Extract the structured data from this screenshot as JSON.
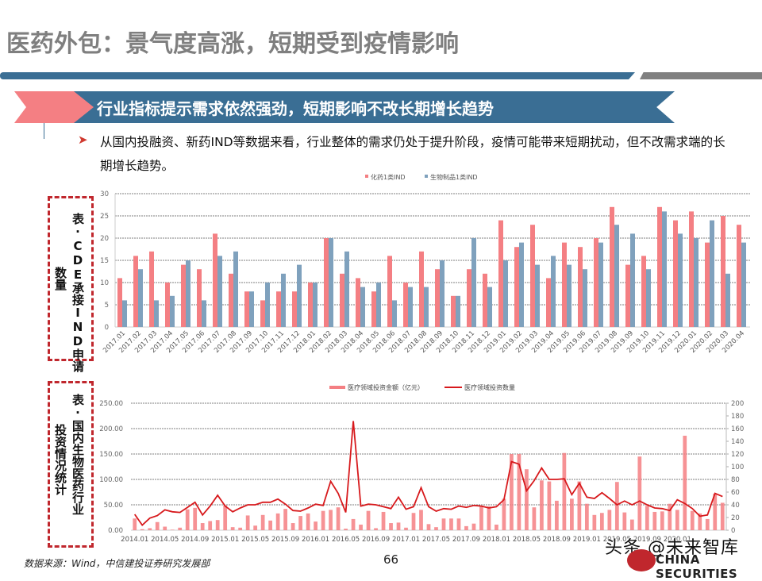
{
  "page": {
    "title": "医药外包：景气度高涨，短期受到疫情影响",
    "section_banner": "行业指标提示需求依然强劲，短期影响不改长期增长趋势",
    "bullet_text": "从国内投融资、新药IND等数据来看，行业整体的需求仍处于提升阶段，疫情可能带来短期扰动，但不改需求端的长期增长趋势。",
    "chart1_caption": "表：CDE承接IND申请数量",
    "chart1_caption_col1": "表·CDE承接IND申请",
    "chart1_caption_col2": "数量",
    "chart2_caption": "表：国内生物医药行业投资情况统计",
    "chart2_caption_col1": "表·国内生物医药行业",
    "chart2_caption_col2": "投资情况统计",
    "footer_source": "数据来源：Wind，中信建投证券研究发展部",
    "page_number": "66",
    "logo_text": "CHINA SECURITIES",
    "watermark": "头条 @未来智库"
  },
  "colors": {
    "title_grey": "#7f7f7f",
    "blue": "#3a6e94",
    "pink": "#f47f83",
    "series_red": "#f47f83",
    "series_blue": "#7fa1bd",
    "line_red": "#d7191c",
    "dash_red": "#c0272d"
  },
  "chart_data": [
    {
      "type": "bar",
      "title": "CDE承接IND申请数量",
      "legend_position": "top",
      "grid": true,
      "ylim": [
        0,
        30
      ],
      "yticks": [
        0,
        5,
        10,
        15,
        20,
        25,
        30
      ],
      "categories": [
        "2017.01",
        "2017.02",
        "2017.03",
        "2017.04",
        "2017.05",
        "2017.06",
        "2017.07",
        "2017.08",
        "2017.09",
        "2017.10",
        "2017.11",
        "2017.12",
        "2018.01",
        "2018.02",
        "2018.03",
        "2018.04",
        "2018.05",
        "2018.06",
        "2018.07",
        "2018.08",
        "2018.09",
        "2018.10",
        "2018.11",
        "2018.12",
        "2019.01",
        "2019.02",
        "2019.03",
        "2019.04",
        "2019.05",
        "2019.06",
        "2019.07",
        "2019.08",
        "2019.09",
        "2019.10",
        "2019.11",
        "2019.12",
        "2020.01",
        "2020.02",
        "2020.03",
        "2020.04"
      ],
      "series": [
        {
          "name": "化药1类IND",
          "color": "#f47f83",
          "values": [
            11,
            16,
            17,
            10,
            14,
            13,
            21,
            12,
            8,
            6,
            8,
            8,
            10,
            20,
            12,
            11,
            8,
            16,
            10,
            17,
            13,
            7,
            13,
            12,
            24,
            18,
            23,
            11,
            19,
            18,
            20,
            27,
            14,
            16,
            27,
            24,
            26,
            19,
            25,
            23
          ]
        },
        {
          "name": "生物制品1类IND",
          "color": "#7fa1bd",
          "values": [
            6,
            13,
            6,
            7,
            15,
            6,
            16,
            17,
            8,
            10,
            12,
            14,
            10,
            20,
            17,
            9,
            10,
            6,
            9,
            9,
            15,
            7,
            20,
            9,
            15,
            19,
            14,
            16,
            14,
            13,
            19,
            23,
            21,
            13,
            26,
            21,
            20,
            24,
            12,
            19
          ]
        }
      ]
    },
    {
      "type": "bar+line",
      "title": "国内生物医药行业投资情况统计",
      "legend_position": "top",
      "grid": true,
      "ylim_left": [
        0,
        250
      ],
      "yticks_left": [
        "0.00",
        "50.00",
        "100.00",
        "150.00",
        "200.00",
        "250.00"
      ],
      "ylim_right": [
        0,
        200
      ],
      "yticks_right": [
        0,
        20,
        40,
        60,
        80,
        100,
        120,
        140,
        160,
        180,
        200
      ],
      "xtick_labels": [
        "2014.01",
        "2014.05",
        "2014.09",
        "2015.01",
        "2015.05",
        "2015.09",
        "2016.01",
        "2016.05",
        "2016.09",
        "2017.01",
        "2017.05",
        "2017.09",
        "2018.01",
        "2018.05",
        "2018.09",
        "2019.01",
        "2019.05",
        "2019.09",
        "2020.01"
      ],
      "x_start": "2014.01",
      "x_end": "2020.04",
      "series": [
        {
          "name": "医疗领域投资金额（亿元）",
          "axis": "left",
          "kind": "bar",
          "color": "#f47f83",
          "values": [
            23,
            2,
            4,
            16,
            7,
            1,
            5,
            41,
            44,
            14,
            18,
            20,
            49,
            6,
            5,
            29,
            9,
            30,
            19,
            33,
            42,
            14,
            28,
            33,
            17,
            38,
            40,
            45,
            3,
            22,
            11,
            38,
            4,
            36,
            14,
            15,
            5,
            34,
            40,
            12,
            6,
            23,
            23,
            23,
            8,
            13,
            48,
            47,
            11,
            62,
            150,
            150,
            120,
            45,
            98,
            96,
            58,
            152,
            62,
            96,
            52,
            30,
            34,
            40,
            95,
            35,
            21,
            145,
            48,
            36,
            37,
            52,
            40,
            186,
            38,
            33,
            22,
            72,
            54
          ]
        },
        {
          "name": "医疗领域投资数量",
          "axis": "right",
          "kind": "line",
          "color": "#d7191c",
          "values": [
            25,
            8,
            19,
            23,
            32,
            29,
            28,
            36,
            44,
            24,
            38,
            55,
            38,
            29,
            35,
            40,
            40,
            44,
            44,
            49,
            41,
            31,
            30,
            35,
            41,
            39,
            77,
            58,
            28,
            172,
            38,
            41,
            40,
            37,
            34,
            52,
            33,
            37,
            67,
            37,
            30,
            34,
            33,
            38,
            36,
            39,
            38,
            35,
            37,
            48,
            108,
            104,
            62,
            78,
            98,
            80,
            80,
            81,
            56,
            74,
            52,
            50,
            59,
            50,
            40,
            46,
            40,
            46,
            40,
            35,
            34,
            31,
            48,
            42,
            34,
            22,
            24,
            58,
            53
          ]
        }
      ]
    }
  ]
}
